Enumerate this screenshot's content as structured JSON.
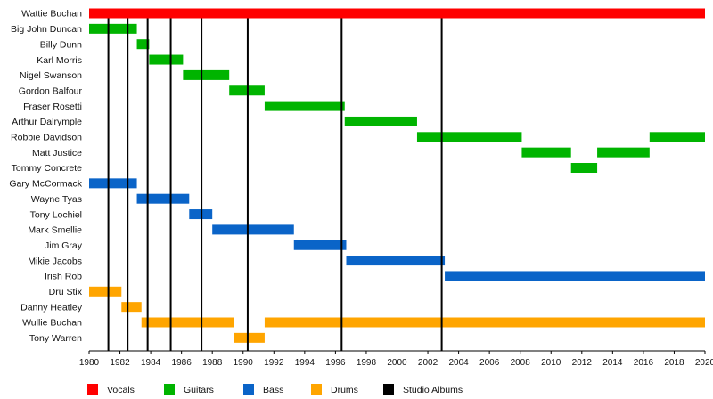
{
  "chart_data": {
    "type": "timeline",
    "title": "",
    "xlabel": "",
    "ylabel": "",
    "xlim": [
      1980,
      2020
    ],
    "x_ticks": [
      "1980",
      "1982",
      "1984",
      "1986",
      "1988",
      "1990",
      "1992",
      "1994",
      "1996",
      "1998",
      "2000",
      "2002",
      "2004",
      "2006",
      "2008",
      "2010",
      "2012",
      "2014",
      "2016",
      "2018",
      "2020"
    ],
    "colors": {
      "Vocals": "#ff0000",
      "Guitars": "#00b400",
      "Bass": "#0a64c8",
      "Drums": "#ffa500",
      "Studio Albums": "#000000"
    },
    "legend": [
      "Vocals",
      "Guitars",
      "Bass",
      "Drums",
      "Studio Albums"
    ],
    "members": [
      {
        "name": "Wattie Buchan",
        "periods": [
          {
            "role": "Vocals",
            "start": 1980.0,
            "end": 2020.0
          }
        ]
      },
      {
        "name": "Big John Duncan",
        "periods": [
          {
            "role": "Guitars",
            "start": 1980.0,
            "end": 1983.1
          }
        ]
      },
      {
        "name": "Billy Dunn",
        "periods": [
          {
            "role": "Guitars",
            "start": 1983.1,
            "end": 1983.9
          }
        ]
      },
      {
        "name": "Karl Morris",
        "periods": [
          {
            "role": "Guitars",
            "start": 1983.9,
            "end": 1986.1
          }
        ]
      },
      {
        "name": "Nigel Swanson",
        "periods": [
          {
            "role": "Guitars",
            "start": 1986.1,
            "end": 1989.1
          }
        ]
      },
      {
        "name": "Gordon Balfour",
        "periods": [
          {
            "role": "Guitars",
            "start": 1989.1,
            "end": 1991.4
          }
        ]
      },
      {
        "name": "Fraser Rosetti",
        "periods": [
          {
            "role": "Guitars",
            "start": 1991.4,
            "end": 1996.6
          }
        ]
      },
      {
        "name": "Arthur Dalrymple",
        "periods": [
          {
            "role": "Guitars",
            "start": 1996.6,
            "end": 2001.3
          }
        ]
      },
      {
        "name": "Robbie Davidson",
        "periods": [
          {
            "role": "Guitars",
            "start": 2001.3,
            "end": 2008.1
          },
          {
            "role": "Guitars",
            "start": 2016.4,
            "end": 2020.0
          }
        ]
      },
      {
        "name": "Matt Justice",
        "periods": [
          {
            "role": "Guitars",
            "start": 2008.1,
            "end": 2011.3
          },
          {
            "role": "Guitars",
            "start": 2013.0,
            "end": 2016.4
          }
        ]
      },
      {
        "name": "Tommy Concrete",
        "periods": [
          {
            "role": "Guitars",
            "start": 2011.3,
            "end": 2013.0
          }
        ]
      },
      {
        "name": "Gary McCormack",
        "periods": [
          {
            "role": "Bass",
            "start": 1980.0,
            "end": 1983.1
          }
        ]
      },
      {
        "name": "Wayne Tyas",
        "periods": [
          {
            "role": "Bass",
            "start": 1983.1,
            "end": 1986.5
          }
        ]
      },
      {
        "name": "Tony Lochiel",
        "periods": [
          {
            "role": "Bass",
            "start": 1986.5,
            "end": 1988.0
          }
        ]
      },
      {
        "name": "Mark Smellie",
        "periods": [
          {
            "role": "Bass",
            "start": 1988.0,
            "end": 1993.3
          }
        ]
      },
      {
        "name": "Jim Gray",
        "periods": [
          {
            "role": "Bass",
            "start": 1993.3,
            "end": 1996.7
          }
        ]
      },
      {
        "name": "Mikie Jacobs",
        "periods": [
          {
            "role": "Bass",
            "start": 1996.7,
            "end": 2003.1
          }
        ]
      },
      {
        "name": "Irish Rob",
        "periods": [
          {
            "role": "Bass",
            "start": 2003.1,
            "end": 2020.0
          }
        ]
      },
      {
        "name": "Dru Stix",
        "periods": [
          {
            "role": "Drums",
            "start": 1980.0,
            "end": 1982.1
          }
        ]
      },
      {
        "name": "Danny Heatley",
        "periods": [
          {
            "role": "Drums",
            "start": 1982.1,
            "end": 1983.4
          }
        ]
      },
      {
        "name": "Wullie Buchan",
        "periods": [
          {
            "role": "Drums",
            "start": 1983.4,
            "end": 1989.4
          },
          {
            "role": "Drums",
            "start": 1991.4,
            "end": 2020.0
          }
        ]
      },
      {
        "name": "Tony Warren",
        "periods": [
          {
            "role": "Drums",
            "start": 1989.4,
            "end": 1991.4
          }
        ]
      }
    ],
    "studio_albums": [
      1981.25,
      1982.5,
      1983.8,
      1985.3,
      1987.3,
      1990.3,
      1996.4,
      2002.9
    ]
  }
}
